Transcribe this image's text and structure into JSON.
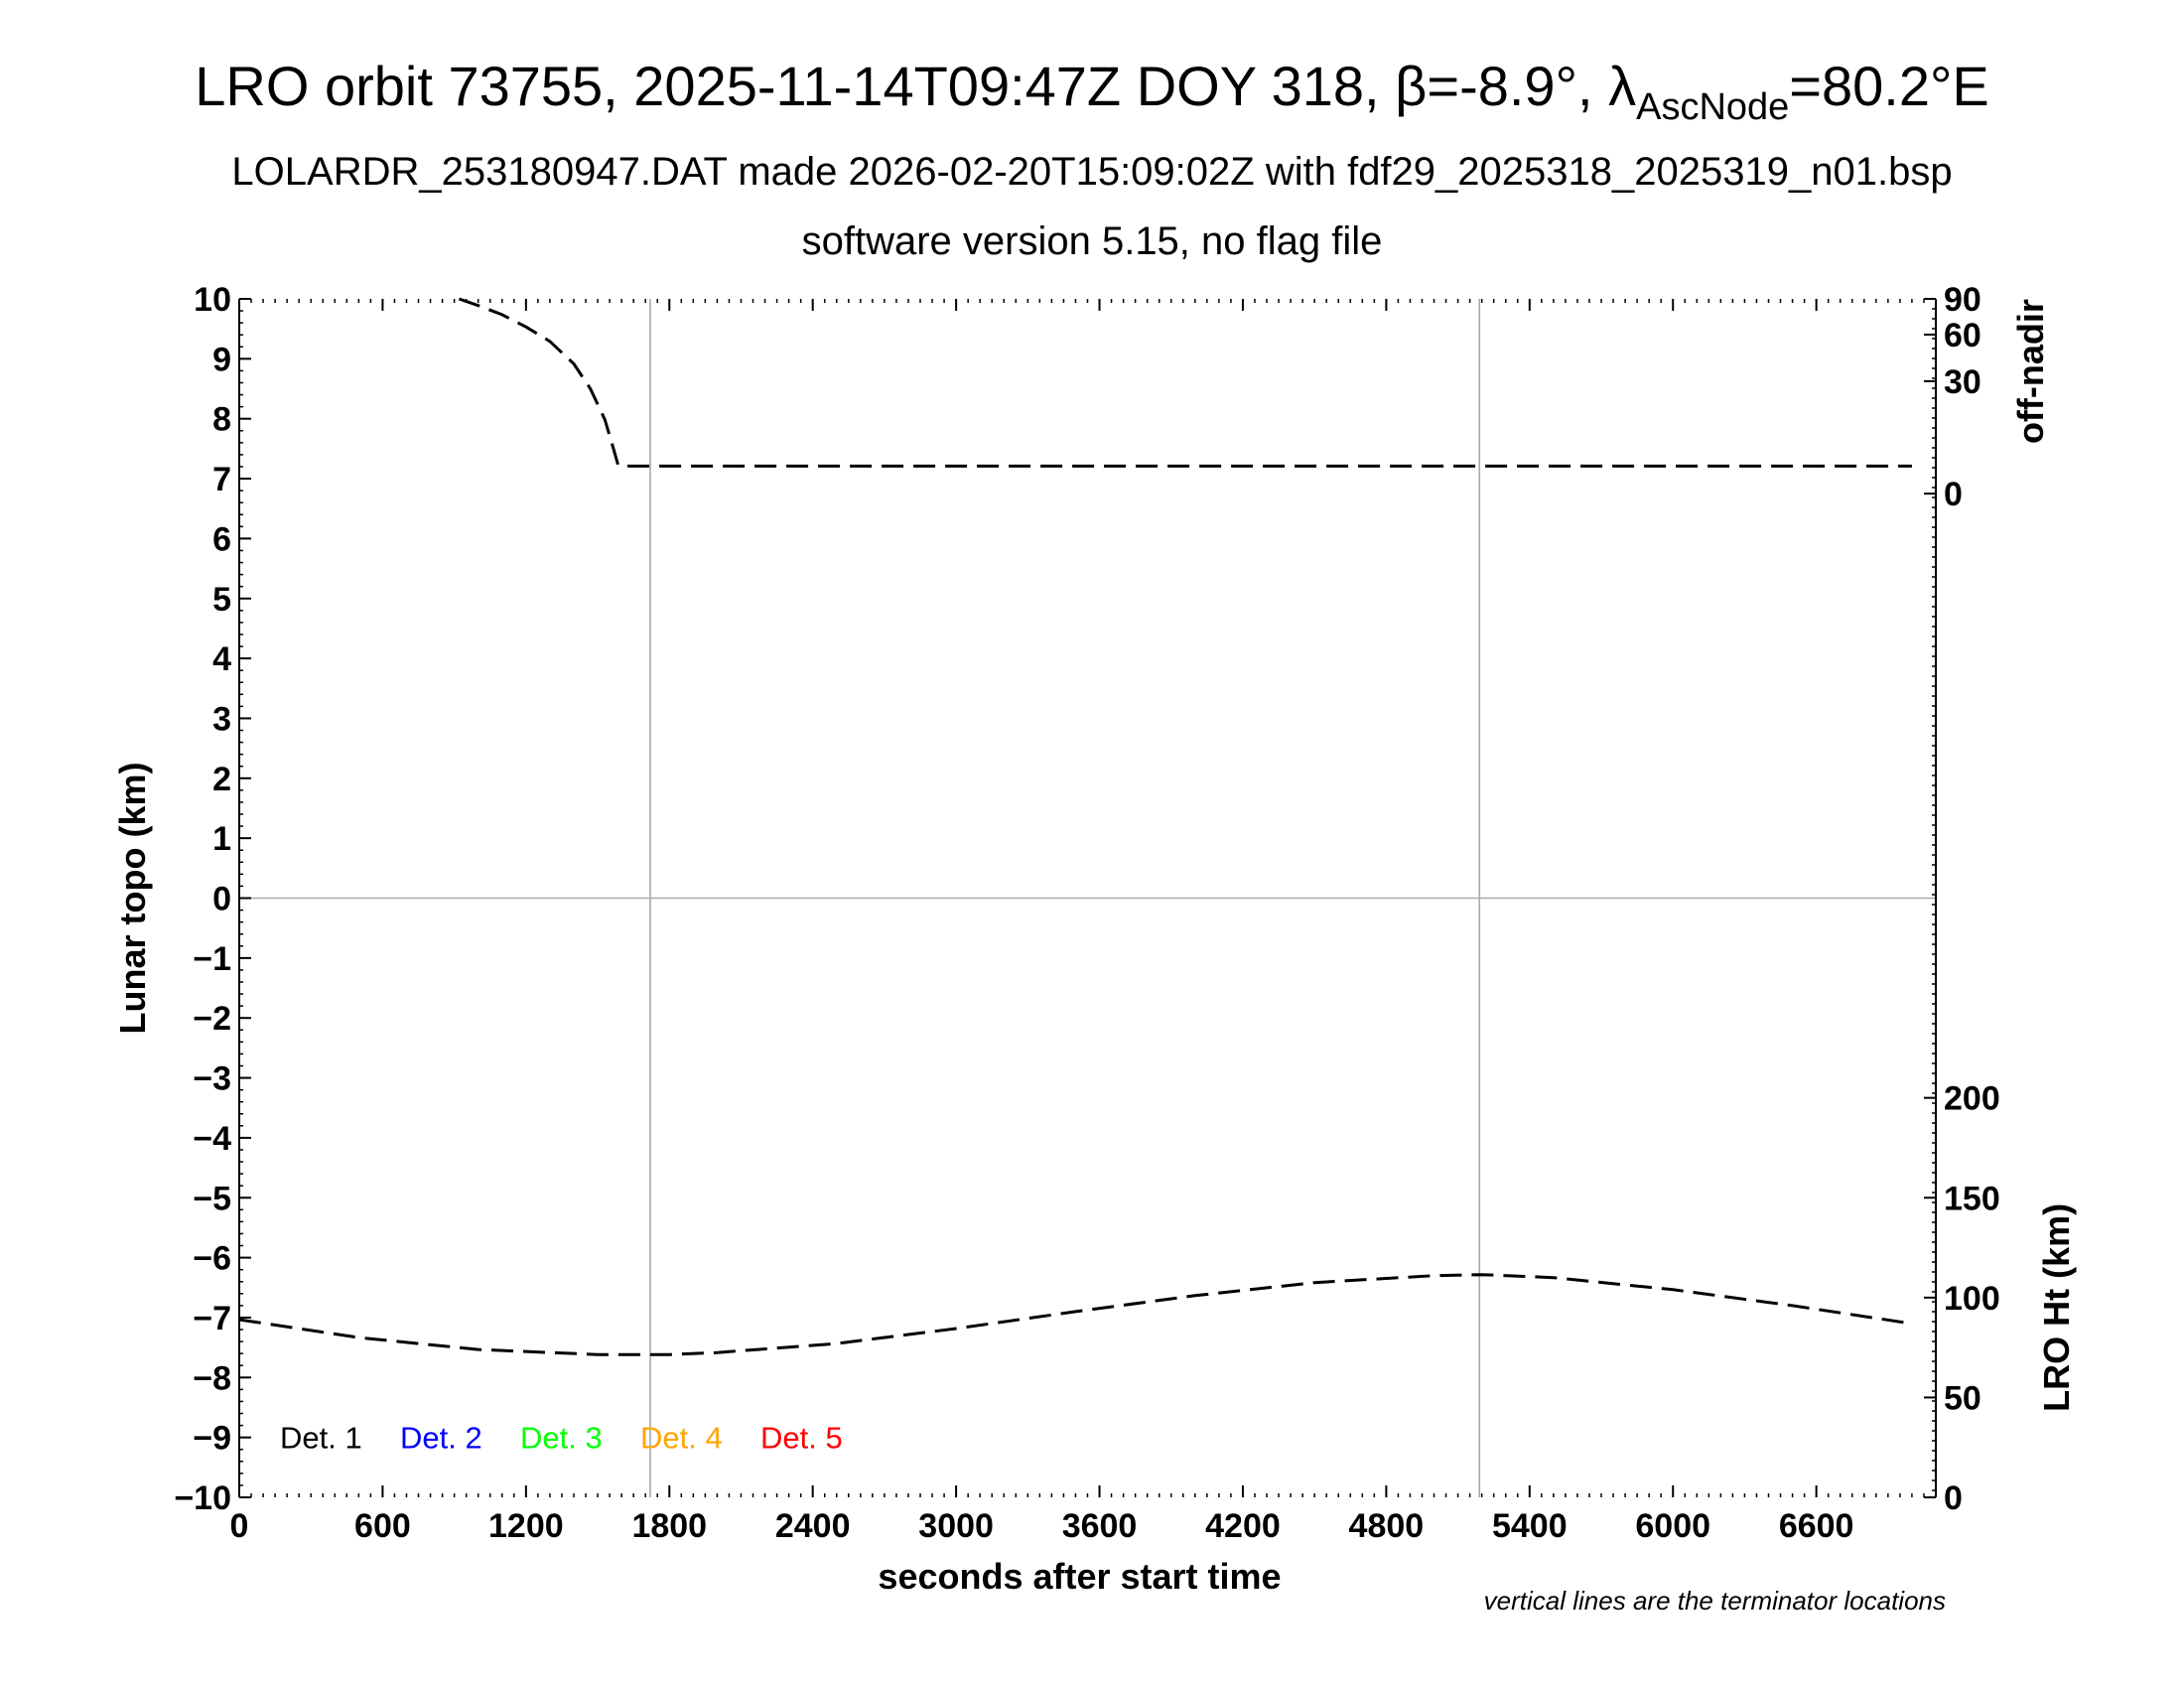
{
  "title": {
    "prefix": "LRO orbit 73755, 2025-11-14T09:47Z DOY 318, ",
    "beta_symbol": "β",
    "beta_value": "=-8.9°, ",
    "lambda_symbol": "λ",
    "lambda_subscript": "AscNode",
    "lambda_value": "=80.2°E"
  },
  "subtitle1": "LOLARDR_253180947.DAT made 2026-02-20T15:09:02Z with fdf29_2025318_2025319_n01.bsp",
  "subtitle2": "software version 5.15, no flag file",
  "footnote": "vertical lines are the terminator locations",
  "colors": {
    "series": "#000000",
    "grid": "#aaaaaa",
    "det1": "#000000",
    "det2": "#0000ff",
    "det3": "#00ff00",
    "det4": "#ffa500",
    "det5": "#ff0000"
  },
  "chart_data": {
    "type": "line",
    "xlabel": "seconds after start time",
    "xlim": [
      0,
      7100
    ],
    "xticks": [
      0,
      600,
      1200,
      1800,
      2400,
      3000,
      3600,
      4200,
      4800,
      5400,
      6000,
      6600
    ],
    "xtick_labels": [
      "0",
      "600",
      "1200",
      "1800",
      "2400",
      "3000",
      "3600",
      "4200",
      "4800",
      "5400",
      "6000",
      "6600"
    ],
    "ylabel": "Lunar topo (km)",
    "ylim": [
      -10,
      10
    ],
    "yticks": [
      10,
      9,
      8,
      7,
      6,
      5,
      4,
      3,
      2,
      1,
      0,
      -1,
      -2,
      -3,
      -4,
      -5,
      -6,
      -7,
      -8,
      -9,
      -10
    ],
    "ytick_labels": [
      "10",
      "9",
      "8",
      "7",
      "6",
      "5",
      "4",
      "3",
      "2",
      "1",
      "0",
      "−1",
      "−2",
      "−3",
      "−4",
      "−5",
      "−6",
      "−7",
      "−8",
      "−9",
      "−10"
    ],
    "terminator_lines_x": [
      1720,
      5190
    ],
    "zero_line_y": 0,
    "right_axes": [
      {
        "label": "off-nadir",
        "ticks": [
          90,
          60,
          30,
          0
        ],
        "tick_labels": [
          "90",
          "60",
          "30",
          "0"
        ],
        "scale": "sqrt"
      },
      {
        "label": "LRO Ht (km)",
        "ticks": [
          0,
          50,
          100,
          150,
          200
        ],
        "tick_labels": [
          "0",
          "50",
          "100",
          "150",
          "200"
        ],
        "ylim": [
          0,
          200
        ]
      }
    ],
    "series": [
      {
        "name": "off-nadir",
        "axis": "off-nadir",
        "style": "dashed",
        "x": [
          920,
          1000,
          1100,
          1200,
          1300,
          1400,
          1470,
          1530,
          1565,
          1585,
          1600,
          1650,
          1700,
          2000,
          2500,
          3000,
          3500,
          4000,
          4500,
          5000,
          5190,
          5500,
          6000,
          6500,
          7000
        ],
        "y": [
          90,
          84,
          76,
          66,
          55,
          40,
          26,
          13,
          5,
          2,
          1.8,
          1.8,
          1.8,
          1.8,
          1.8,
          1.8,
          1.8,
          1.8,
          1.8,
          1.8,
          1.8,
          1.8,
          1.8,
          1.8,
          1.8
        ]
      },
      {
        "name": "LRO Ht",
        "axis": "LRO Ht (km)",
        "style": "dashed",
        "x": [
          0,
          500,
          1000,
          1500,
          1800,
          2000,
          2500,
          3000,
          3500,
          4000,
          4500,
          5000,
          5200,
          5500,
          6000,
          6500,
          7000
        ],
        "y": [
          89,
          80,
          74,
          71.5,
          71.5,
          72.5,
          77,
          84.5,
          93,
          101,
          107.5,
          111,
          111.5,
          110,
          104,
          96,
          87
        ]
      }
    ],
    "legend": {
      "position": "bottom-left",
      "entries": [
        "Det. 1",
        "Det. 2",
        "Det. 3",
        "Det. 4",
        "Det. 5"
      ]
    }
  }
}
